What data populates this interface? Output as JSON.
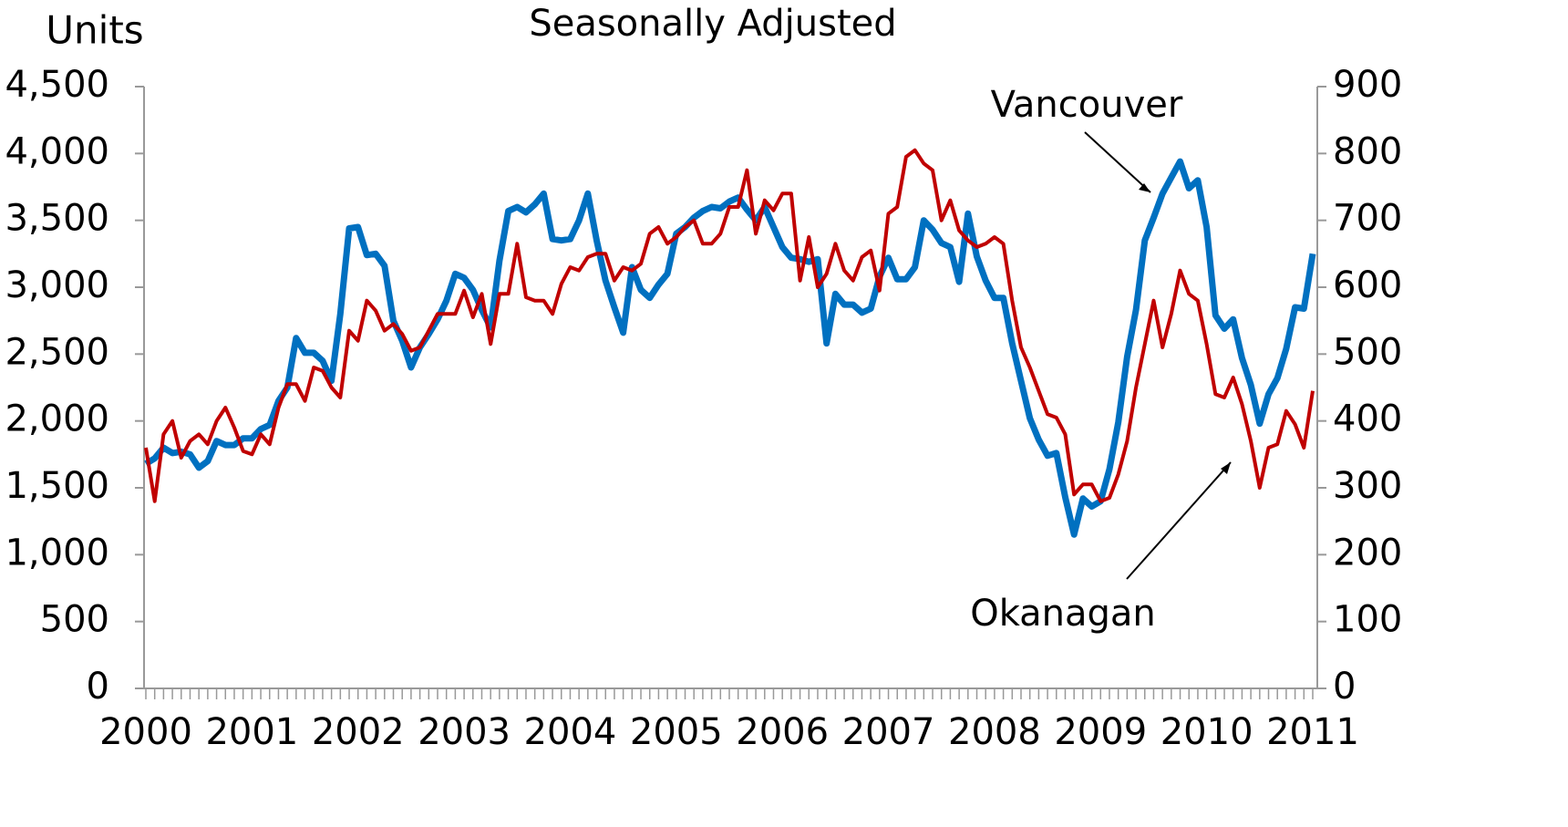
{
  "chart_data": {
    "type": "line",
    "title": "Seasonally Adjusted",
    "y_label": "Units",
    "annotations": [
      "Vancouver",
      "Okanagan"
    ],
    "categories": [
      "2000",
      null,
      null,
      null,
      null,
      null,
      null,
      null,
      null,
      null,
      null,
      null,
      "2001",
      null,
      null,
      null,
      null,
      null,
      null,
      null,
      null,
      null,
      null,
      null,
      "2002",
      null,
      null,
      null,
      null,
      null,
      null,
      null,
      null,
      null,
      null,
      null,
      "2003",
      null,
      null,
      null,
      null,
      null,
      null,
      null,
      null,
      null,
      null,
      null,
      "2004",
      null,
      null,
      null,
      null,
      null,
      null,
      null,
      null,
      null,
      null,
      null,
      "2005",
      null,
      null,
      null,
      null,
      null,
      null,
      null,
      null,
      null,
      null,
      null,
      "2006",
      null,
      null,
      null,
      null,
      null,
      null,
      null,
      null,
      null,
      null,
      null,
      "2007",
      null,
      null,
      null,
      null,
      null,
      null,
      null,
      null,
      null,
      null,
      null,
      "2008",
      null,
      null,
      null,
      null,
      null,
      null,
      null,
      null,
      null,
      null,
      null,
      "2009",
      null,
      null,
      null,
      null,
      null,
      null,
      null,
      null,
      null,
      null,
      null,
      "2010",
      null,
      null,
      null,
      null,
      null,
      null,
      null,
      null,
      null,
      null,
      null,
      "2011"
    ],
    "ylim": [
      0,
      4500
    ],
    "yticks": [
      0,
      {
        "value": 500,
        "label": "500"
      },
      {
        "value": 1000,
        "label": "1,000"
      },
      {
        "value": 1500,
        "label": "1,500"
      },
      {
        "value": 2000,
        "label": "2,000"
      },
      {
        "value": 2500,
        "label": "2,500"
      },
      {
        "value": 3000,
        "label": "3,000"
      },
      {
        "value": 3500,
        "label": "3,500"
      },
      {
        "value": 4000,
        "label": "4,000"
      },
      {
        "value": 4500,
        "label": "4,500"
      }
    ],
    "y2lim": [
      0,
      900
    ],
    "y2ticks": [
      0,
      100,
      200,
      300,
      400,
      500,
      600,
      700,
      800,
      900
    ],
    "series": [
      {
        "name": "Vancouver",
        "color": "#0070c0",
        "values": [
          1680,
          1720,
          1800,
          1760,
          1770,
          1750,
          1650,
          1700,
          1850,
          1820,
          1820,
          1870,
          1870,
          1940,
          1970,
          2150,
          2250,
          2620,
          2510,
          2510,
          2450,
          2300,
          2800,
          3440,
          3450,
          3240,
          3250,
          3160,
          2750,
          2600,
          2400,
          2550,
          2650,
          2760,
          2900,
          3100,
          3070,
          2980,
          2830,
          2700,
          3200,
          3570,
          3600,
          3560,
          3620,
          3700,
          3360,
          3350,
          3360,
          3500,
          3700,
          3350,
          3050,
          2850,
          2660,
          3150,
          2980,
          2920,
          3020,
          3100,
          3400,
          3450,
          3520,
          3570,
          3600,
          3590,
          3640,
          3670,
          3580,
          3500,
          3600,
          3450,
          3300,
          3220,
          3210,
          3190,
          3210,
          2580,
          2950,
          2870,
          2870,
          2810,
          2840,
          3080,
          3220,
          3060,
          3060,
          3150,
          3500,
          3430,
          3330,
          3300,
          3040,
          3550,
          3230,
          3050,
          2920,
          2920,
          2580,
          2300,
          2020,
          1860,
          1740,
          1760,
          1430,
          1150,
          1420,
          1360,
          1400,
          1640,
          1990,
          2480,
          2830,
          3350,
          3520,
          3700,
          3820,
          3940,
          3740,
          3800,
          3450,
          2790,
          2690,
          2760,
          2470,
          2270,
          1980,
          2200,
          2320,
          2540,
          2850,
          2840,
          3250
        ]
      },
      {
        "name": "Okanagan",
        "color": "#c00000",
        "axis": "y2",
        "values": [
          360,
          280,
          380,
          400,
          345,
          370,
          380,
          365,
          400,
          420,
          390,
          355,
          350,
          380,
          365,
          420,
          455,
          455,
          430,
          480,
          475,
          450,
          435,
          535,
          520,
          580,
          565,
          535,
          545,
          530,
          505,
          510,
          535,
          560,
          560,
          560,
          595,
          555,
          590,
          515,
          590,
          590,
          665,
          585,
          580,
          580,
          560,
          605,
          630,
          625,
          645,
          650,
          650,
          610,
          630,
          625,
          635,
          680,
          690,
          665,
          675,
          690,
          700,
          665,
          665,
          680,
          720,
          720,
          775,
          680,
          730,
          715,
          740,
          740,
          610,
          675,
          600,
          620,
          665,
          625,
          610,
          645,
          655,
          595,
          710,
          720,
          795,
          805,
          785,
          775,
          700,
          730,
          685,
          670,
          660,
          665,
          675,
          665,
          580,
          510,
          480,
          445,
          410,
          405,
          380,
          290,
          305,
          305,
          280,
          285,
          320,
          370,
          450,
          515,
          580,
          510,
          560,
          625,
          590,
          580,
          515,
          440,
          435,
          465,
          425,
          370,
          300,
          360,
          365,
          415,
          395,
          360,
          445
        ]
      }
    ]
  }
}
